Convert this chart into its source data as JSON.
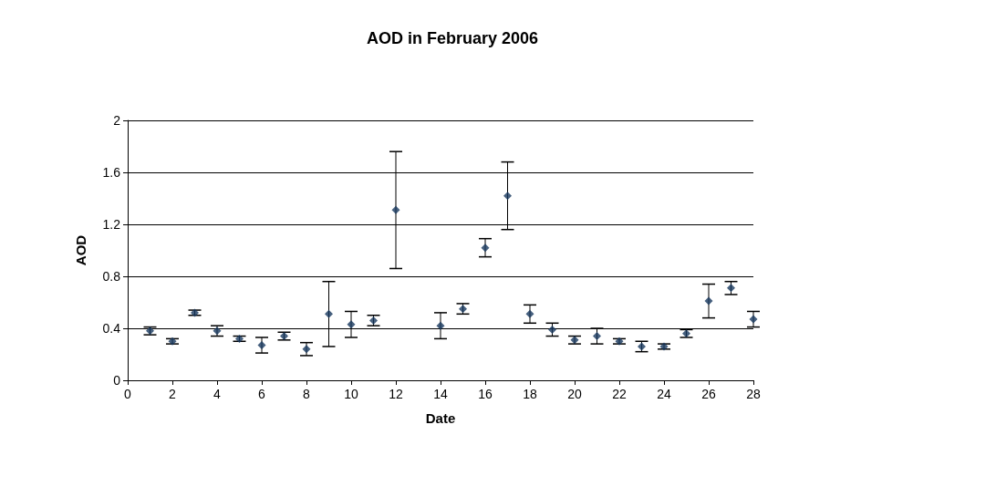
{
  "chart_data": {
    "type": "scatter",
    "title": "AOD in February 2006",
    "xlabel": "Date",
    "ylabel": "AOD",
    "x": [
      1,
      2,
      3,
      4,
      5,
      6,
      7,
      8,
      9,
      10,
      11,
      12,
      14,
      15,
      16,
      17,
      18,
      19,
      20,
      21,
      22,
      23,
      24,
      25,
      26,
      27,
      28
    ],
    "values": [
      0.38,
      0.3,
      0.52,
      0.38,
      0.32,
      0.27,
      0.34,
      0.24,
      0.51,
      0.43,
      0.46,
      1.31,
      0.42,
      0.55,
      1.02,
      1.42,
      0.51,
      0.39,
      0.31,
      0.34,
      0.3,
      0.26,
      0.26,
      0.36,
      0.61,
      0.71,
      0.47
    ],
    "errors": [
      0.03,
      0.02,
      0.02,
      0.04,
      0.02,
      0.06,
      0.03,
      0.05,
      0.25,
      0.1,
      0.04,
      0.45,
      0.1,
      0.04,
      0.07,
      0.26,
      0.07,
      0.05,
      0.03,
      0.06,
      0.02,
      0.04,
      0.02,
      0.03,
      0.13,
      0.05,
      0.06
    ],
    "color": "#17375e",
    "marker": "diamond",
    "xlim": [
      0,
      28
    ],
    "xticks": [
      0,
      2,
      4,
      6,
      8,
      10,
      12,
      14,
      16,
      18,
      20,
      22,
      24,
      26,
      28
    ],
    "ylim": [
      0,
      2
    ],
    "yticks": [
      0,
      0.4,
      0.8,
      1.2,
      1.6,
      2
    ],
    "grid": "y"
  }
}
